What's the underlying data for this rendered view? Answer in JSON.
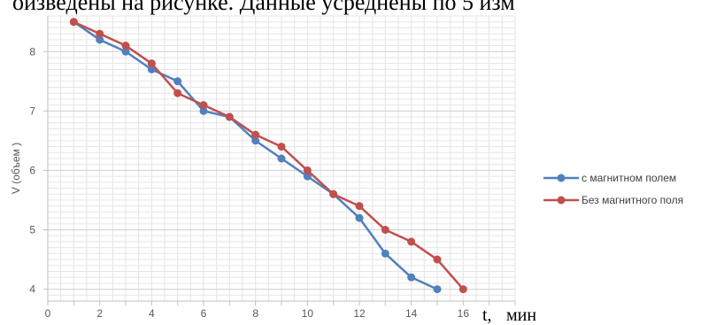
{
  "header_text": "оизведены на рисунке. Данные усреднены по 5 изм",
  "chart_data": {
    "type": "line",
    "xlabel_t": "t,",
    "xlabel_unit": "мин",
    "ylabel": "V (объем )",
    "xlim": [
      0,
      18
    ],
    "ylim": [
      3.8,
      8.6
    ],
    "x_ticks": [
      "0",
      "2",
      "4",
      "6",
      "8",
      "10",
      "12",
      "14",
      "16"
    ],
    "y_ticks": [
      "4",
      "5",
      "6",
      "7",
      "8"
    ],
    "grid": true,
    "legend_position": "right",
    "series": [
      {
        "name": "с магнитном полем",
        "color": "#4f81bd",
        "x": [
          1,
          2,
          3,
          4,
          5,
          6,
          7,
          8,
          9,
          10,
          11,
          12,
          13,
          14,
          15
        ],
        "y": [
          8.5,
          8.2,
          8.0,
          7.7,
          7.5,
          7.0,
          6.9,
          6.5,
          6.2,
          5.9,
          5.6,
          5.2,
          4.6,
          4.2,
          4.0
        ]
      },
      {
        "name": "Без магнитного поля",
        "color": "#c0504d",
        "x": [
          1,
          2,
          3,
          4,
          5,
          6,
          7,
          8,
          9,
          10,
          11,
          12,
          13,
          14,
          15,
          16
        ],
        "y": [
          8.5,
          8.3,
          8.1,
          7.8,
          7.3,
          7.1,
          6.9,
          6.6,
          6.4,
          6.0,
          5.6,
          5.4,
          5.0,
          4.8,
          4.5,
          4.0
        ]
      }
    ]
  }
}
